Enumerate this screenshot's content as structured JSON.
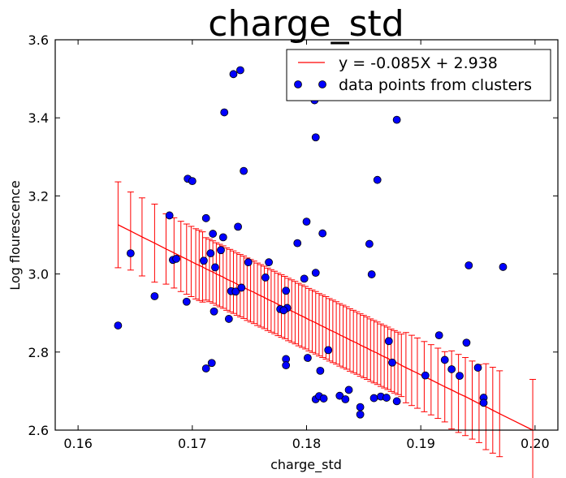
{
  "chart_data": {
    "type": "scatter",
    "title": "charge_std",
    "xlabel": "charge_std",
    "ylabel": "Log flourescence",
    "xlim": [
      0.158,
      0.202
    ],
    "ylim": [
      2.6,
      3.6
    ],
    "xticks": [
      "0.16",
      "0.17",
      "0.18",
      "0.19",
      "0.20"
    ],
    "yticks": [
      "2.6",
      "2.8",
      "3.0",
      "3.2",
      "3.4",
      "3.6"
    ],
    "grid": false,
    "legend_position": "top-right",
    "series": [
      {
        "name": "y = -0.085X + 2.938",
        "kind": "line",
        "color": "#ff0000",
        "x": [
          0.1635,
          0.1646,
          0.1656,
          0.1667,
          0.1677,
          0.1684,
          0.169,
          0.1695,
          0.1699,
          0.1703,
          0.1706,
          0.1709,
          0.1712,
          0.1715,
          0.1718,
          0.1721,
          0.1724,
          0.1727,
          0.173,
          0.1733,
          0.1736,
          0.1739,
          0.1742,
          0.1745,
          0.1748,
          0.1751,
          0.1754,
          0.1757,
          0.176,
          0.1763,
          0.1766,
          0.1769,
          0.1772,
          0.1775,
          0.1778,
          0.1781,
          0.1784,
          0.1787,
          0.179,
          0.1793,
          0.1796,
          0.1799,
          0.1802,
          0.1805,
          0.1808,
          0.1811,
          0.1814,
          0.1817,
          0.182,
          0.1823,
          0.1826,
          0.1829,
          0.1832,
          0.1835,
          0.1838,
          0.1841,
          0.1844,
          0.1847,
          0.185,
          0.1853,
          0.1856,
          0.1859,
          0.1862,
          0.1865,
          0.1868,
          0.1871,
          0.1874,
          0.1877,
          0.188,
          0.1883,
          0.1887,
          0.1892,
          0.1897,
          0.1903,
          0.1909,
          0.1915,
          0.1921,
          0.1927,
          0.1933,
          0.1939,
          0.1945,
          0.1951,
          0.1957,
          0.1963,
          0.1969,
          0.1998
        ],
        "y": [
          3.126,
          3.11,
          3.095,
          3.079,
          3.064,
          3.054,
          3.045,
          3.038,
          3.032,
          3.026,
          3.022,
          3.018,
          3.013,
          3.009,
          3.005,
          3.0,
          2.996,
          2.992,
          2.987,
          2.983,
          2.979,
          2.974,
          2.97,
          2.966,
          2.961,
          2.957,
          2.953,
          2.948,
          2.944,
          2.94,
          2.935,
          2.931,
          2.927,
          2.922,
          2.918,
          2.914,
          2.909,
          2.905,
          2.901,
          2.896,
          2.892,
          2.888,
          2.883,
          2.879,
          2.875,
          2.87,
          2.866,
          2.862,
          2.857,
          2.853,
          2.849,
          2.844,
          2.84,
          2.836,
          2.831,
          2.827,
          2.823,
          2.818,
          2.814,
          2.81,
          2.805,
          2.801,
          2.797,
          2.792,
          2.788,
          2.784,
          2.779,
          2.775,
          2.771,
          2.766,
          2.76,
          2.753,
          2.746,
          2.737,
          2.729,
          2.72,
          2.711,
          2.703,
          2.694,
          2.686,
          2.677,
          2.668,
          2.66,
          2.651,
          2.642,
          2.6
        ],
        "err": [
          0.11,
          0.1,
          0.1,
          0.1,
          0.09,
          0.09,
          0.09,
          0.09,
          0.09,
          0.09,
          0.09,
          0.09,
          0.08,
          0.08,
          0.08,
          0.08,
          0.08,
          0.08,
          0.08,
          0.08,
          0.08,
          0.08,
          0.08,
          0.08,
          0.08,
          0.08,
          0.08,
          0.08,
          0.08,
          0.08,
          0.08,
          0.08,
          0.08,
          0.08,
          0.08,
          0.08,
          0.08,
          0.08,
          0.08,
          0.08,
          0.08,
          0.08,
          0.08,
          0.08,
          0.08,
          0.08,
          0.08,
          0.08,
          0.08,
          0.08,
          0.08,
          0.08,
          0.08,
          0.08,
          0.08,
          0.08,
          0.08,
          0.08,
          0.08,
          0.08,
          0.08,
          0.08,
          0.08,
          0.08,
          0.08,
          0.08,
          0.08,
          0.08,
          0.08,
          0.08,
          0.09,
          0.09,
          0.09,
          0.09,
          0.09,
          0.09,
          0.09,
          0.1,
          0.1,
          0.1,
          0.1,
          0.1,
          0.11,
          0.11,
          0.11,
          0.13
        ]
      },
      {
        "name": "data points from clusters",
        "kind": "scatter",
        "color": "#0000ff",
        "x": [
          0.1635,
          0.1646,
          0.1667,
          0.1683,
          0.168,
          0.1686,
          0.1696,
          0.1695,
          0.17,
          0.171,
          0.1712,
          0.1712,
          0.1716,
          0.1717,
          0.1718,
          0.172,
          0.1719,
          0.1725,
          0.1727,
          0.1728,
          0.1732,
          0.1734,
          0.1736,
          0.1738,
          0.174,
          0.1742,
          0.1743,
          0.1745,
          0.1749,
          0.1764,
          0.1767,
          0.1777,
          0.1782,
          0.1782,
          0.1782,
          0.1783,
          0.178,
          0.1792,
          0.1798,
          0.18,
          0.1801,
          0.1807,
          0.1808,
          0.1808,
          0.1808,
          0.1811,
          0.1812,
          0.1815,
          0.1814,
          0.1819,
          0.1829,
          0.1834,
          0.1837,
          0.1847,
          0.1847,
          0.1855,
          0.1857,
          0.1859,
          0.1862,
          0.1865,
          0.187,
          0.1872,
          0.1875,
          0.1879,
          0.1879,
          0.1904,
          0.1916,
          0.1921,
          0.1927,
          0.1934,
          0.194,
          0.1942,
          0.195,
          0.1955,
          0.1955,
          0.1972
        ],
        "y": [
          2.868,
          3.053,
          2.943,
          3.036,
          3.15,
          3.039,
          3.244,
          2.929,
          3.238,
          3.034,
          3.143,
          2.758,
          3.053,
          2.772,
          3.103,
          3.017,
          2.904,
          3.061,
          3.094,
          3.414,
          2.885,
          2.956,
          3.512,
          2.955,
          3.121,
          3.522,
          2.965,
          3.264,
          3.03,
          2.991,
          3.03,
          2.91,
          2.782,
          2.766,
          2.957,
          2.913,
          2.907,
          3.079,
          2.988,
          3.134,
          2.785,
          3.445,
          2.679,
          3.35,
          3.003,
          2.687,
          2.752,
          2.681,
          3.104,
          2.805,
          2.688,
          2.679,
          2.703,
          2.659,
          2.64,
          3.077,
          2.999,
          2.682,
          3.241,
          2.686,
          2.683,
          2.828,
          2.773,
          2.674,
          3.395,
          2.74,
          2.843,
          2.78,
          2.756,
          2.739,
          2.824,
          3.022,
          2.76,
          2.683,
          2.67,
          3.018
        ]
      }
    ]
  }
}
